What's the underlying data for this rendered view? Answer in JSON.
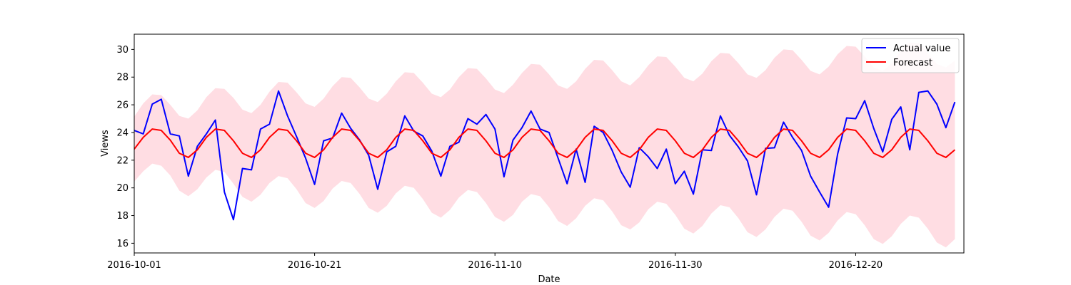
{
  "chart_data": {
    "type": "line",
    "title": "",
    "xlabel": "Date",
    "ylabel": "Views",
    "x_start": "2016-10-01",
    "x_end": "2017-01-01",
    "xlim": [
      "2016-10-01",
      "2017-01-01"
    ],
    "ylim": [
      15.3,
      31.1
    ],
    "x_ticks": [
      "2016-10-01",
      "2016-10-21",
      "2016-11-10",
      "2016-11-30",
      "2016-12-20"
    ],
    "y_ticks": [
      16,
      18,
      20,
      22,
      24,
      26,
      28,
      30
    ],
    "grid": false,
    "legend_position": "top-right",
    "colors": {
      "actual": "#0000ff",
      "forecast": "#ff0000",
      "band": "#ffdde3"
    },
    "series": [
      {
        "name": "Actual value",
        "values": [
          24.15,
          23.9,
          26.05,
          26.4,
          23.9,
          23.75,
          20.85,
          23.0,
          23.9,
          24.9,
          19.7,
          17.7,
          21.4,
          21.3,
          24.25,
          24.6,
          27.0,
          25.2,
          23.7,
          22.15,
          20.25,
          23.4,
          23.6,
          25.4,
          24.3,
          23.45,
          22.35,
          19.9,
          22.6,
          23.0,
          25.2,
          24.1,
          23.75,
          22.65,
          20.85,
          23.0,
          23.3,
          25.0,
          24.6,
          25.3,
          24.25,
          20.8,
          23.45,
          24.35,
          25.55,
          24.25,
          24.0,
          22.15,
          20.3,
          22.8,
          20.4,
          24.45,
          24.0,
          22.7,
          21.15,
          20.05,
          22.9,
          22.25,
          21.4,
          22.8,
          20.3,
          21.2,
          19.55,
          22.75,
          22.7,
          25.2,
          23.8,
          22.95,
          21.95,
          19.5,
          22.85,
          22.9,
          24.75,
          23.65,
          22.7,
          20.85,
          19.7,
          18.6,
          22.45,
          25.05,
          25.0,
          26.3,
          24.3,
          22.6,
          24.95,
          25.85,
          22.75,
          26.9,
          27.0,
          26.05,
          24.35,
          26.2
        ]
      },
      {
        "name": "Forecast",
        "values": [
          22.8,
          23.65,
          24.25,
          24.15,
          23.45,
          22.5,
          22.2,
          22.75,
          23.65,
          24.25,
          24.15,
          23.4,
          22.5,
          22.2,
          22.75,
          23.65,
          24.25,
          24.15,
          23.4,
          22.5,
          22.2,
          22.75,
          23.65,
          24.25,
          24.15,
          23.4,
          22.5,
          22.2,
          22.75,
          23.65,
          24.25,
          24.15,
          23.4,
          22.5,
          22.2,
          22.75,
          23.65,
          24.25,
          24.15,
          23.4,
          22.5,
          22.2,
          22.75,
          23.65,
          24.25,
          24.15,
          23.4,
          22.5,
          22.2,
          22.75,
          23.65,
          24.25,
          24.15,
          23.4,
          22.5,
          22.2,
          22.75,
          23.65,
          24.25,
          24.15,
          23.4,
          22.5,
          22.2,
          22.75,
          23.65,
          24.25,
          24.15,
          23.4,
          22.5,
          22.2,
          22.75,
          23.65,
          24.25,
          24.15,
          23.4,
          22.5,
          22.2,
          22.75,
          23.65,
          24.25,
          24.15,
          23.4,
          22.5,
          22.2,
          22.75,
          23.65,
          24.25,
          24.15,
          23.4,
          22.5,
          22.2,
          22.75
        ]
      }
    ],
    "interval": {
      "upper": [
        25.15,
        26.1,
        26.75,
        26.7,
        26.0,
        25.2,
        25.0,
        25.6,
        26.55,
        27.2,
        27.15,
        26.5,
        25.65,
        25.4,
        26.0,
        26.95,
        27.65,
        27.6,
        26.9,
        26.1,
        25.85,
        26.45,
        27.35,
        28.0,
        27.95,
        27.25,
        26.45,
        26.2,
        26.8,
        27.7,
        28.35,
        28.3,
        27.6,
        26.8,
        26.55,
        27.1,
        28.0,
        28.65,
        28.6,
        27.9,
        27.1,
        26.85,
        27.45,
        28.3,
        28.95,
        28.9,
        28.2,
        27.4,
        27.15,
        27.7,
        28.6,
        29.25,
        29.2,
        28.5,
        27.7,
        27.4,
        28.0,
        28.85,
        29.5,
        29.45,
        28.75,
        27.95,
        27.7,
        28.25,
        29.15,
        29.75,
        29.7,
        29.0,
        28.2,
        27.95,
        28.5,
        29.4,
        30.0,
        29.95,
        29.25,
        28.45,
        28.2,
        28.75,
        29.65,
        30.25,
        30.2,
        29.5,
        28.7,
        28.45,
        29.0,
        29.9,
        30.5,
        30.45,
        29.75,
        28.95,
        28.7,
        29.2
      ]
    }
  }
}
